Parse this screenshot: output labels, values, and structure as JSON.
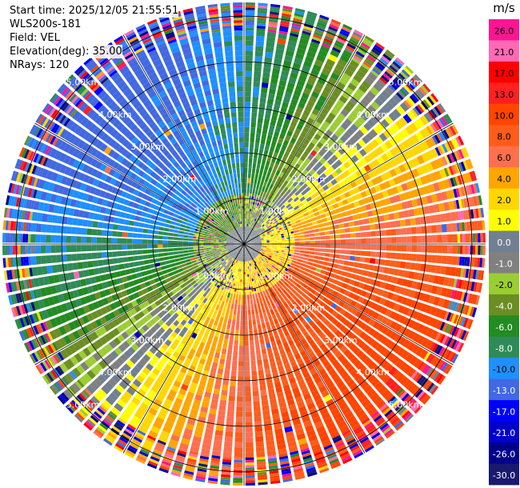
{
  "header": {
    "start_time": "Start time: 2025/12/05 21:55:51",
    "instrument": "WLS200s-181",
    "field": "Field: VEL",
    "elevation": "Elevation(deg): 35.00",
    "nrays": "NRays: 120"
  },
  "chart_data": {
    "type": "heatmap",
    "projection": "polar-ppi",
    "field": "VEL",
    "units": "m/s",
    "nrays": 120,
    "max_range_km": 5.3,
    "inner_noise_radius_km": 1.1,
    "ring_labels": [
      "1.00km",
      "2.00km",
      "3.00km",
      "4.00km",
      "5.00km"
    ],
    "ring_ranges_km": [
      1,
      2,
      3,
      4,
      5
    ],
    "spoke_angles_deg": [
      0,
      30,
      60,
      90,
      120,
      150,
      180,
      210,
      240,
      270,
      300,
      330
    ],
    "velocity_pattern": {
      "amplitude_ms": 9.5,
      "azimuth_of_max_deg": 135,
      "description_values": "approaching in north-west, receding in south-east, noisy beyond ~4.6 km"
    },
    "colorbar": {
      "title": "m/s",
      "tick_labels": [
        "26.0",
        "21.0",
        "17.0",
        "13.0",
        "10.0",
        "8.0",
        "6.0",
        "4.0",
        "2.0",
        "1.0",
        "0.0",
        "-1.0",
        "-2.0",
        "-4.0",
        "-6.0",
        "-8.0",
        "-10.0",
        "-13.0",
        "-17.0",
        "-21.0",
        "-26.0",
        "-30.0"
      ],
      "boundaries": [
        30,
        26,
        21,
        17,
        13,
        10,
        8,
        6,
        4,
        2,
        1,
        0,
        -1,
        -2,
        -4,
        -6,
        -8,
        -10,
        -13,
        -17,
        -21,
        -26,
        -30
      ],
      "colors": [
        "#ff1493",
        "#ff69b4",
        "#ff0000",
        "#ff2020",
        "#ff4500",
        "#ff5c1c",
        "#ff6f4d",
        "#ffa500",
        "#ffd700",
        "#ffff00",
        "#708090",
        "#808080",
        "#9acd32",
        "#6b8e23",
        "#228b22",
        "#2e8b57",
        "#1e90ff",
        "#4169e1",
        "#0000ff",
        "#0000cd",
        "#00008b",
        "#191970"
      ]
    }
  }
}
